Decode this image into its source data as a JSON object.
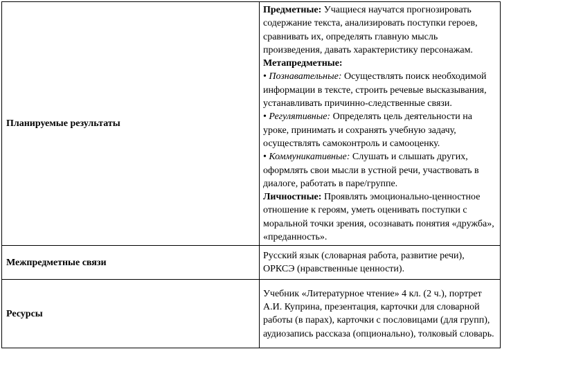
{
  "colors": {
    "page_background": "#ffffff",
    "table_border": "#000000",
    "text": "#000000"
  },
  "table": {
    "row1": {
      "label": "Планируемые результаты",
      "content": {
        "subject_label": "Предметные:",
        "subject_text": "Учащиеся научатся прогнозировать содержание текста, анализировать поступки героев, сравнивать их, определять главную мысль произведения, давать характеристику персонажам.",
        "meta_label": "Метапредметные:",
        "bullet": "•",
        "cognitive_label": "Познавательные:",
        "cognitive_text": "Осуществлять поиск необходимой информации в тексте, строить речевые высказывания, устанавливать причинно-следственные связи.",
        "regulative_label": "Регулятивные:",
        "regulative_text": "Определять цель деятельности на уроке, принимать и сохранять учебную задачу, осуществлять самоконтроль и самооценку.",
        "communicative_label": "Коммуникативные:",
        "communicative_text": "Слушать и слышать других, оформлять свои мысли в устной речи, участвовать в диалоге, работать в паре/группе.",
        "personal_label": "Личностные:",
        "personal_text": "Проявлять эмоционально-ценностное отношение к героям, уметь оценивать поступки с моральной точки зрения, осознавать понятия «дружба», «преданность»."
      }
    },
    "row2": {
      "label": "Межпредметные связи",
      "text": "Русский язык (словарная работа, развитие речи), ОРКСЭ (нравственные ценности)."
    },
    "row3": {
      "label": "Ресурсы",
      "text": "Учебник «Литературное чтение» 4 кл. (2 ч.), портрет А.И. Куприна, презентация, карточки для словарной работы (в парах), карточки с пословицами (для групп), аудиозапись рассказа (опционально), толковый словарь."
    }
  }
}
